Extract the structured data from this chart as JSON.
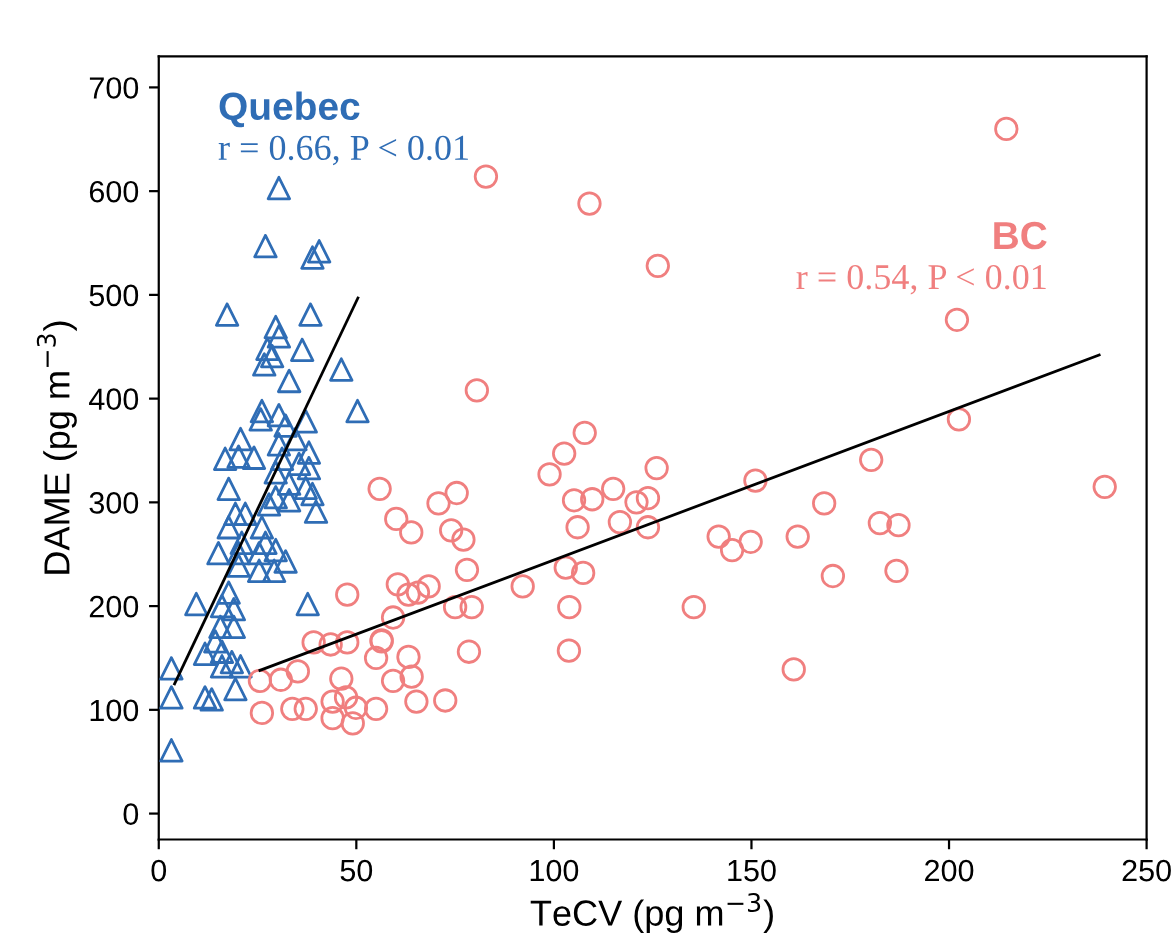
{
  "chart_data": {
    "type": "scatter",
    "xlabel": "TeCV (pg m$^{−3}$)",
    "ylabel": "DAME (pg m$^{−3}$)",
    "xlim": [
      0,
      250
    ],
    "ylim": [
      -25,
      730
    ],
    "xticks": [
      0,
      50,
      100,
      150,
      200,
      250
    ],
    "yticks": [
      0,
      100,
      200,
      300,
      400,
      500,
      600,
      700
    ],
    "grid": false,
    "legend": false,
    "annotations": [
      "r = 0.66, P < 0.01",
      "r = 0.54, P < 0.01"
    ],
    "series": [
      {
        "name": "Quebec",
        "color": "#2f6db5",
        "marker": "triangle",
        "x": [
          30.4,
          27,
          40.6,
          38.9,
          17.3,
          38.4,
          29.6,
          30.4,
          36.3,
          27.5,
          28.7,
          26.7,
          46.2,
          33,
          50.3,
          26.1,
          30.4,
          25.8,
          37.2,
          32.1,
          20.7,
          34.6,
          30.4,
          38,
          16.8,
          20.2,
          24.1,
          31.2,
          35.5,
          38,
          29.6,
          17.7,
          37.2,
          33,
          29.6,
          38.9,
          33,
          27.9,
          39.8,
          19.4,
          21.9,
          17.7,
          26.1,
          21,
          27,
          15.1,
          20.2,
          25.4,
          29.6,
          32.1,
          20.2,
          25.4,
          29.2,
          9.5,
          17.7,
          16,
          19,
          37.7,
          15.6,
          19,
          14.3,
          11.7,
          16,
          18.5,
          16,
          20.7,
          3.2,
          11.7,
          13.4,
          19.4,
          3.2,
          3.2
        ],
        "values": [
          603,
          547,
          542,
          536,
          481,
          481,
          469,
          460,
          447,
          448,
          441,
          433,
          428,
          417,
          388,
          388,
          384,
          380,
          378,
          374,
          361,
          361,
          356,
          348,
          342,
          344,
          343,
          342,
          337,
          333,
          329,
          313,
          314,
          318,
          305,
          308,
          302,
          298,
          291,
          289,
          289,
          276,
          276,
          261,
          261,
          251,
          251,
          251,
          254,
          243,
          239,
          234,
          234,
          202,
          213,
          200,
          197,
          202,
          180,
          180,
          166,
          154,
          156,
          146,
          142,
          142,
          140,
          112,
          110,
          120,
          112,
          61
        ]
      },
      {
        "name": "BC",
        "color": "#f07f7f",
        "marker": "circle",
        "x": [
          55.9,
          47.7,
          39.2,
          43.5,
          47.7,
          56.4,
          25.6,
          30.9,
          35.2,
          46.2,
          55,
          26.1,
          33.8,
          37.2,
          44,
          47.4,
          44,
          49.1,
          49.9,
          55,
          59.3,
          75.4,
          70.8,
          60.1,
          63.9,
          74,
          77.1,
          102.6,
          98.9,
          126,
          115,
          105.1,
          109.7,
          120.9,
          123.8,
          151,
          106,
          116.7,
          123.8,
          141.7,
          145.1,
          149.8,
          78,
          103,
          107.4,
          92.1,
          60.5,
          63.2,
          65.6,
          68.3,
          59.3,
          75,
          79.2,
          103.9,
          135.4,
          56.4,
          63.2,
          78.5,
          103.8,
          64,
          65.2,
          72.5,
          202,
          202.5,
          239.4,
          180.3,
          168.4,
          182.5,
          187.2,
          161.7,
          170.6,
          186.7,
          160.7,
          214.5,
          82.8,
          109,
          126.3,
          80.5,
          107.8
        ],
        "values": [
          313,
          211,
          165,
          163,
          165,
          167,
          128,
          129,
          137,
          130,
          150,
          97,
          101,
          101,
          108,
          112,
          92,
          87,
          102,
          101,
          128,
          309,
          299,
          284,
          271,
          273,
          264,
          347,
          327,
          333,
          313,
          302,
          303,
          300,
          304,
          321,
          276,
          281,
          276,
          267,
          254,
          262,
          235,
          237,
          232,
          219,
          221,
          211,
          213,
          219,
          189,
          199,
          199,
          199,
          199,
          166,
          151,
          156,
          157,
          132,
          108,
          109,
          476,
          380,
          315,
          341,
          299,
          280,
          278,
          267,
          229,
          234,
          139,
          660,
          614,
          588,
          528,
          408,
          367
        ]
      },
      {
        "type": "line",
        "color": "#000000",
        "x": [
          4,
          50.4
        ],
        "values": [
          125,
          497
        ]
      },
      {
        "type": "line",
        "color": "#000000",
        "x": [
          25.6,
          238
        ],
        "values": [
          138,
          442
        ]
      }
    ]
  }
}
